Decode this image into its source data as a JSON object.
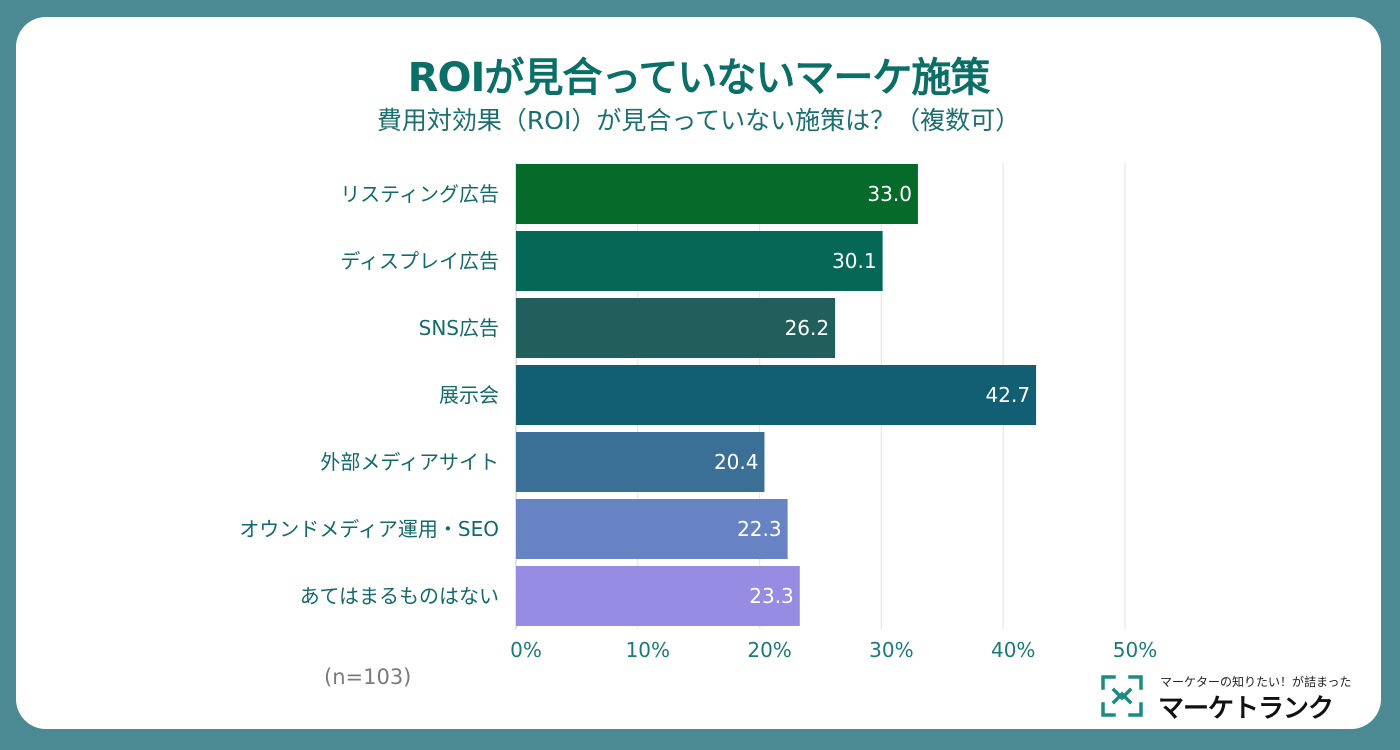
{
  "header": {
    "title": "ROIが見合っていないマーケ施策",
    "subtitle": "費用対効果（ROI）が見合っていない施策は？（複数可）"
  },
  "chart_data": {
    "type": "bar",
    "orientation": "horizontal",
    "title": "ROIが見合っていないマーケ施策",
    "subtitle": "費用対効果（ROI）が見合っていない施策は？（複数可）",
    "categories": [
      "リスティング広告",
      "ディスプレイ広告",
      "SNS広告",
      "展示会",
      "外部メディアサイト",
      "オウンドメディア運用・SEO",
      "あてはまるものはない"
    ],
    "values": [
      33.0,
      30.1,
      26.2,
      42.7,
      20.4,
      22.3,
      23.3
    ],
    "value_labels": [
      "33.0",
      "30.1",
      "26.2",
      "42.7",
      "20.4",
      "22.3",
      "23.3"
    ],
    "bar_colors": [
      "#066a2b",
      "#056856",
      "#215e5c",
      "#125f73",
      "#3a7096",
      "#6883c3",
      "#978ce4"
    ],
    "xlim": [
      0,
      50
    ],
    "xticks": [
      0,
      10,
      20,
      30,
      40,
      50
    ],
    "xtick_labels": [
      "0%",
      "10%",
      "20%",
      "30%",
      "40%",
      "50%"
    ],
    "xlabel": "",
    "ylabel": "",
    "grid": true,
    "note": "(n=103)"
  },
  "branding": {
    "tagline": "マーケターの知りたい！が詰まった",
    "wordmark": "マーケトランク",
    "icon": "bracket-corners-icon"
  },
  "colors": {
    "background": "#4b8a93",
    "card": "#ffffff",
    "title": "#0a6f66",
    "grid": "#e3e8ea"
  }
}
